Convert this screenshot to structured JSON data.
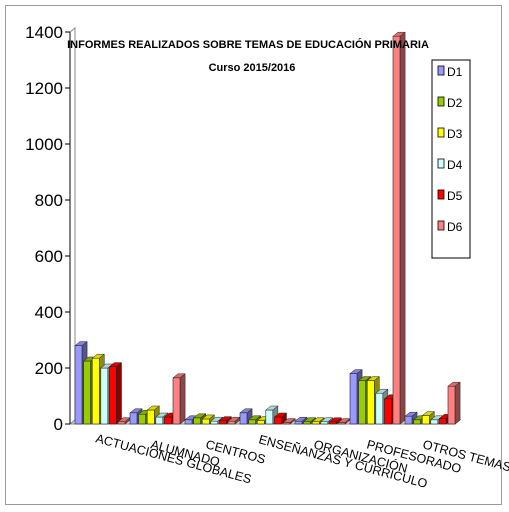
{
  "chart_data": {
    "type": "bar",
    "title": "INFORMES REALIZADOS SOBRE TEMAS DE EDUCACIÓN PRIMARIA",
    "subtitle": "Curso 2015/2016",
    "xlabel": "",
    "ylabel": "",
    "ylim": [
      0,
      1400
    ],
    "yticks": [
      "0",
      "200",
      "400",
      "600",
      "800",
      "1000",
      "1200",
      "1400"
    ],
    "grid": false,
    "legend_position": "right",
    "categories": [
      "ACTUACIONES GLOBALES",
      "ALUMNADO",
      "CENTROS",
      "ENSEÑANZAS Y CURRÍCULO",
      "ORGANIZACIÓN",
      "PROFESORADO",
      "OTROS TEMAS"
    ],
    "series": [
      {
        "name": "D1",
        "color": "#9999ff",
        "values": [
          280,
          40,
          15,
          40,
          10,
          180,
          28
        ]
      },
      {
        "name": "D2",
        "color": "#99cc00",
        "values": [
          225,
          35,
          22,
          15,
          8,
          155,
          15
        ]
      },
      {
        "name": "D3",
        "color": "#ffff00",
        "values": [
          235,
          50,
          18,
          12,
          8,
          155,
          30
        ]
      },
      {
        "name": "D4",
        "color": "#ccffff",
        "values": [
          200,
          25,
          10,
          50,
          8,
          110,
          15
        ]
      },
      {
        "name": "D5",
        "color": "#ff0000",
        "values": [
          205,
          25,
          12,
          25,
          8,
          90,
          20
        ]
      },
      {
        "name": "D6",
        "color": "#ff8080",
        "values": [
          8,
          165,
          10,
          5,
          5,
          1385,
          135
        ]
      }
    ]
  }
}
